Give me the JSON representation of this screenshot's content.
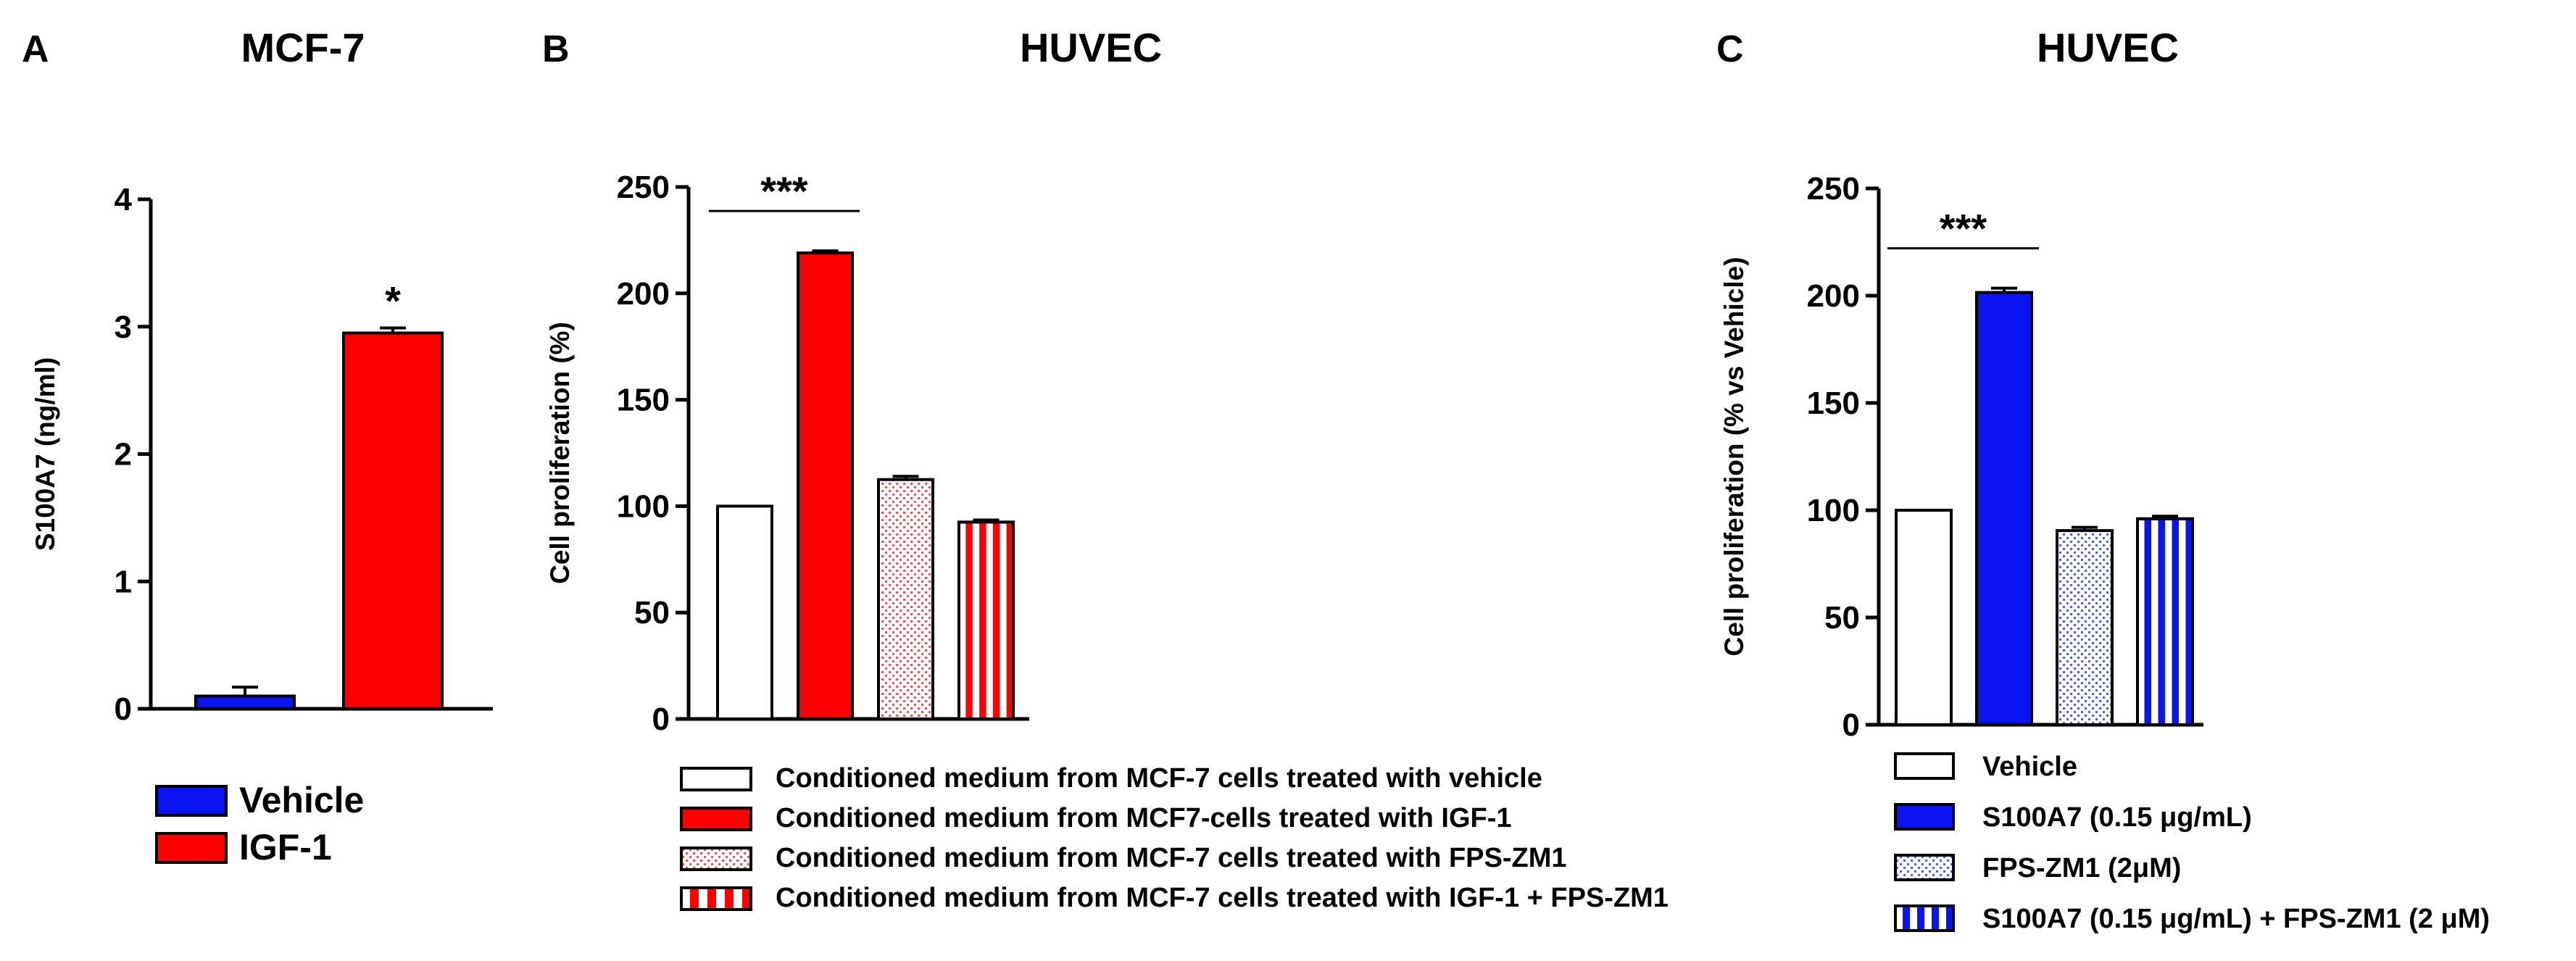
{
  "colors": {
    "vehicle_blue": "#0a14f0",
    "igf_red": "#ff0000",
    "white": "#ffffff",
    "black": "#000000"
  },
  "chart_data": [
    {
      "panel": "A",
      "type": "bar",
      "title": "MCF-7",
      "ylabel": "S100A7 (ng/ml)",
      "ylim": [
        0,
        4
      ],
      "yticks": [
        0,
        1,
        2,
        3,
        4
      ],
      "series": [
        {
          "name": "Vehicle",
          "value": 0.1,
          "error": 0.07,
          "fill": "#0a14f0",
          "pattern": "solid"
        },
        {
          "name": "IGF-1",
          "value": 2.95,
          "error": 0.04,
          "fill": "#ff0000",
          "pattern": "solid"
        }
      ],
      "annotations": [
        {
          "text": "*",
          "bar": 1
        }
      ],
      "legend": "below"
    },
    {
      "panel": "B",
      "type": "bar",
      "title": "HUVEC",
      "ylabel": "Cell proliferation (%)",
      "ylim": [
        0,
        250
      ],
      "yticks": [
        0,
        50,
        100,
        150,
        200,
        250
      ],
      "series": [
        {
          "name": "Conditioned medium from MCF-7 cells treated with vehicle",
          "value": 100,
          "error": 0,
          "fill": "#ffffff",
          "pattern": "solid"
        },
        {
          "name": "Conditioned medium from MCF7-cells treated with IGF-1",
          "value": 219,
          "error": 1,
          "fill": "#ff0000",
          "pattern": "solid"
        },
        {
          "name": "Conditioned medium from MCF-7 cells treated with FPS-ZM1",
          "value": 112.5,
          "error": 1.5,
          "fill": "#ff0000",
          "pattern": "dots"
        },
        {
          "name": "Conditioned medium from MCF-7 cells treated with IGF-1 + FPS-ZM1",
          "value": 92.5,
          "error": 1,
          "fill": "#ff0000",
          "pattern": "stripes"
        }
      ],
      "annotations": [
        {
          "text": "***",
          "bars": [
            0,
            1
          ]
        }
      ],
      "legend": "below"
    },
    {
      "panel": "C",
      "type": "bar",
      "title": "HUVEC",
      "ylabel": "Cell proliferation (% vs Vehicle)",
      "ylim": [
        0,
        250
      ],
      "yticks": [
        0,
        50,
        100,
        150,
        200,
        250
      ],
      "series": [
        {
          "name": "Vehicle",
          "value": 100,
          "error": 0,
          "fill": "#ffffff",
          "pattern": "solid"
        },
        {
          "name": "S100A7 (0.15 μg/mL)",
          "value": 201.5,
          "error": 2,
          "fill": "#0a14f0",
          "pattern": "solid"
        },
        {
          "name": "FPS-ZM1 (2μM)",
          "value": 90.5,
          "error": 1.5,
          "fill": "#0a14f0",
          "pattern": "dots"
        },
        {
          "name": "S100A7 (0.15 μg/mL) + FPS-ZM1 (2 μM)",
          "value": 96,
          "error": 1.2,
          "fill": "#0a14f0",
          "pattern": "stripes"
        }
      ],
      "annotations": [
        {
          "text": "***",
          "bars": [
            0,
            1
          ]
        }
      ],
      "legend": "below"
    }
  ],
  "panels": {
    "A": {
      "letter": "A",
      "title": "MCF-7"
    },
    "B": {
      "letter": "B",
      "title": "HUVEC"
    },
    "C": {
      "letter": "C",
      "title": "HUVEC"
    }
  }
}
